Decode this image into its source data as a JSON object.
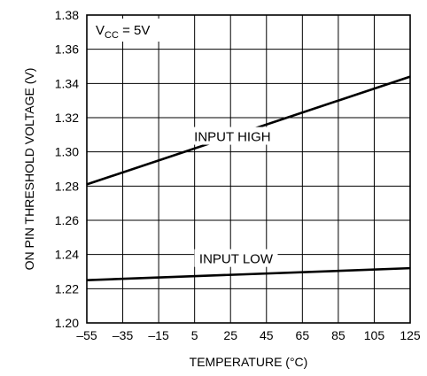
{
  "chart_data": {
    "type": "line",
    "title": "",
    "xlabel": "TEMPERATURE (°C)",
    "ylabel": "ON PIN THRESHOLD VOLTAGE (V)",
    "xlim": [
      -55,
      125
    ],
    "ylim": [
      1.2,
      1.38
    ],
    "x_ticks": [
      -55,
      -35,
      -15,
      5,
      25,
      45,
      65,
      85,
      105,
      125
    ],
    "x_tick_labels": [
      "–55",
      "–35",
      "–15",
      "5",
      "25",
      "45",
      "65",
      "85",
      "105",
      "125"
    ],
    "y_ticks": [
      1.2,
      1.22,
      1.24,
      1.26,
      1.28,
      1.3,
      1.32,
      1.34,
      1.36,
      1.38
    ],
    "y_tick_labels": [
      "1.20",
      "1.22",
      "1.24",
      "1.26",
      "1.28",
      "1.30",
      "1.32",
      "1.34",
      "1.36",
      "1.38"
    ],
    "grid": true,
    "annotation": {
      "main": "V",
      "sub": "CC",
      "rest": " = 5V"
    },
    "series": [
      {
        "name": "INPUT HIGH",
        "x": [
          -55,
          125
        ],
        "y": [
          1.281,
          1.344
        ],
        "color": "#000000"
      },
      {
        "name": "INPUT LOW",
        "x": [
          -55,
          125
        ],
        "y": [
          1.225,
          1.232
        ],
        "color": "#000000"
      }
    ]
  }
}
